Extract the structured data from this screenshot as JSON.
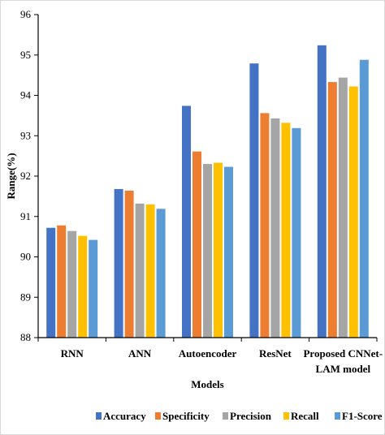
{
  "chart_data": {
    "type": "bar",
    "title": "",
    "xlabel": "Models",
    "ylabel": "Range(%)",
    "ylim": [
      88,
      96
    ],
    "yticks": [
      88,
      89,
      90,
      91,
      92,
      93,
      94,
      95,
      96
    ],
    "grid": false,
    "legend_position": "bottom",
    "categories": [
      "RNN",
      "ANN",
      "Autoencoder",
      "ResNet",
      "Proposed CNNet-LAM model"
    ],
    "category_lines": [
      [
        "RNN"
      ],
      [
        "ANN"
      ],
      [
        "Autoencoder"
      ],
      [
        "ResNet"
      ],
      [
        "Proposed CNNet-",
        "LAM model"
      ]
    ],
    "series": [
      {
        "name": "Accuracy",
        "color": "#4472C4",
        "values": [
          90.72,
          91.68,
          93.74,
          94.79,
          95.24
        ]
      },
      {
        "name": "Specificity",
        "color": "#ED7D31",
        "values": [
          90.78,
          91.64,
          92.61,
          93.56,
          94.33
        ]
      },
      {
        "name": "Precision",
        "color": "#A5A5A5",
        "values": [
          90.64,
          91.32,
          92.3,
          93.43,
          94.44
        ]
      },
      {
        "name": "Recall",
        "color": "#FFC000",
        "values": [
          90.52,
          91.3,
          92.33,
          93.32,
          94.22
        ]
      },
      {
        "name": "F1-Score",
        "color": "#5B9BD5",
        "values": [
          90.42,
          91.19,
          92.23,
          93.19,
          94.88
        ]
      }
    ]
  }
}
